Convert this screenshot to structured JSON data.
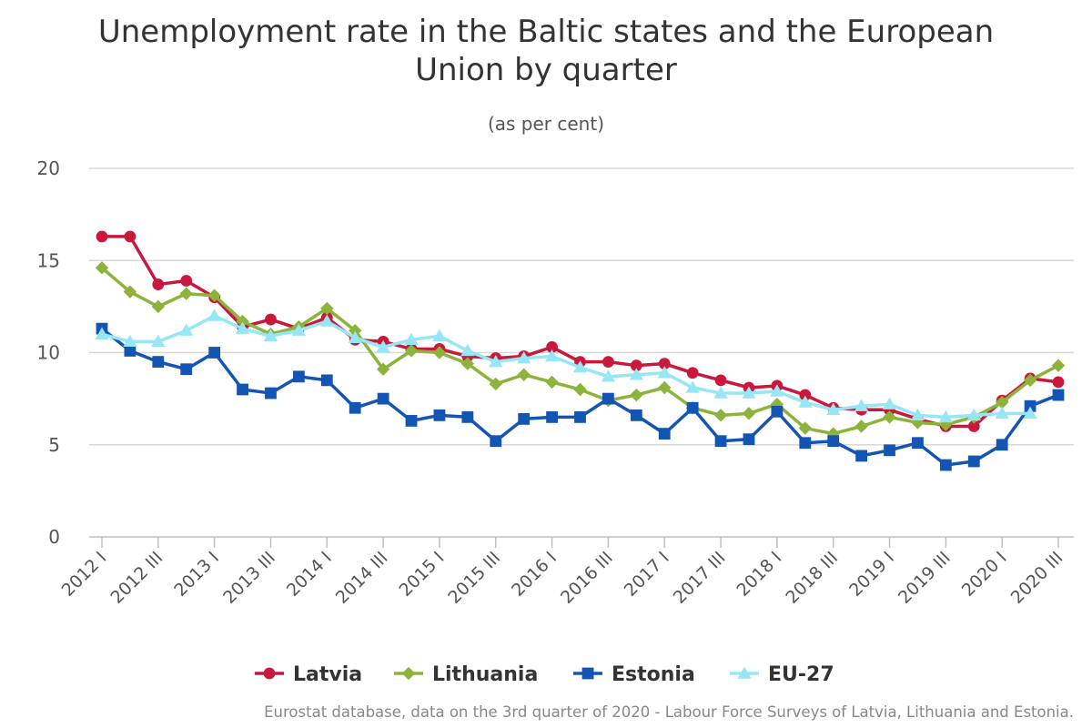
{
  "chart_data": {
    "type": "line",
    "title": "Unemployment rate in the Baltic states and the European Union by quarter",
    "subtitle": "(as per cent)",
    "categories": [
      "2012 I",
      "2012 II",
      "2012 III",
      "2012 IV",
      "2013 I",
      "2013 II",
      "2013 III",
      "2013 IV",
      "2014 I",
      "2014 II",
      "2014 III",
      "2014 IV",
      "2015 I",
      "2015 II",
      "2015 III",
      "2015 IV",
      "2016 I",
      "2016 II",
      "2016 III",
      "2016 IV",
      "2017 I",
      "2017 II",
      "2017 III",
      "2017 IV",
      "2018 I",
      "2018 II",
      "2018 III",
      "2018 IV",
      "2019 I",
      "2019 II",
      "2019 III",
      "2019 IV",
      "2020 I",
      "2020 II",
      "2020 III"
    ],
    "x_tick_labels": [
      "2012 I",
      "2012 III",
      "2013 I",
      "2013 III",
      "2014 I",
      "2014 III",
      "2015 I",
      "2015 III",
      "2016 I",
      "2016 III",
      "2017 I",
      "2017 III",
      "2018 I",
      "2018 III",
      "2019 I",
      "2019 III",
      "2020 I",
      "2020 III"
    ],
    "ylim": [
      0,
      20
    ],
    "y_ticks": [
      0,
      5,
      10,
      15,
      20
    ],
    "grid": true,
    "legend_position": "bottom",
    "series": [
      {
        "name": "Latvia",
        "color": "#c8193c",
        "marker": "circle",
        "values": [
          16.3,
          16.3,
          13.7,
          13.9,
          13.0,
          11.4,
          11.8,
          11.3,
          11.9,
          10.7,
          10.6,
          10.2,
          10.2,
          9.8,
          9.7,
          9.8,
          10.3,
          9.5,
          9.5,
          9.3,
          9.4,
          8.9,
          8.5,
          8.1,
          8.2,
          7.7,
          7.0,
          6.9,
          6.9,
          6.4,
          6.0,
          6.0,
          7.4,
          8.6,
          8.4
        ]
      },
      {
        "name": "Lithuania",
        "color": "#8cb43c",
        "marker": "diamond",
        "values": [
          14.6,
          13.3,
          12.5,
          13.2,
          13.1,
          11.7,
          11.0,
          11.4,
          12.4,
          11.2,
          9.1,
          10.1,
          10.0,
          9.4,
          8.3,
          8.8,
          8.4,
          8.0,
          7.4,
          7.7,
          8.1,
          7.0,
          6.6,
          6.7,
          7.2,
          5.9,
          5.6,
          6.0,
          6.5,
          6.2,
          6.1,
          6.5,
          7.3,
          8.5,
          9.3
        ]
      },
      {
        "name": "Estonia",
        "color": "#1455b4",
        "marker": "square",
        "values": [
          11.3,
          10.1,
          9.5,
          9.1,
          10.0,
          8.0,
          7.8,
          8.7,
          8.5,
          7.0,
          7.5,
          6.3,
          6.6,
          6.5,
          5.2,
          6.4,
          6.5,
          6.5,
          7.5,
          6.6,
          5.6,
          7.0,
          5.2,
          5.3,
          6.8,
          5.1,
          5.2,
          4.4,
          4.7,
          5.1,
          3.9,
          4.1,
          5.0,
          7.1,
          7.7
        ]
      },
      {
        "name": "EU-27",
        "color": "#96e6f5",
        "marker": "triangle",
        "values": [
          11.0,
          10.6,
          10.6,
          11.2,
          12.0,
          11.3,
          10.9,
          11.2,
          11.7,
          10.8,
          10.3,
          10.7,
          10.9,
          10.1,
          9.5,
          9.7,
          9.8,
          9.2,
          8.7,
          8.8,
          8.9,
          8.1,
          7.8,
          7.8,
          7.9,
          7.3,
          6.9,
          7.1,
          7.2,
          6.6,
          6.5,
          6.6,
          6.7,
          6.7,
          null
        ]
      }
    ]
  },
  "source_text": "Eurostat database, data on the 3rd quarter of 2020 - Labour Force Surveys of Latvia, Lithuania and Estonia.",
  "colors": {
    "grid": "#d8d8d8",
    "axis": "#c0c0c0",
    "text": "#333333",
    "source": "#888888"
  }
}
